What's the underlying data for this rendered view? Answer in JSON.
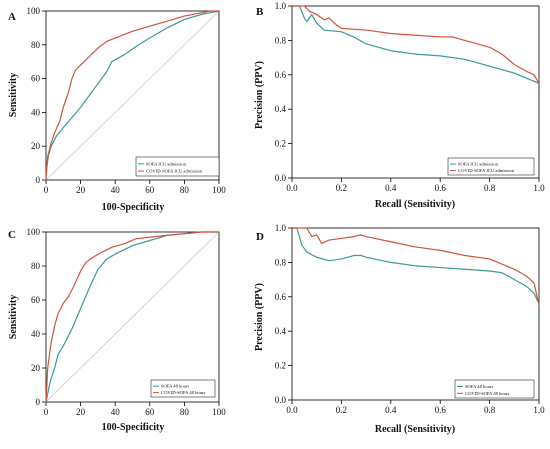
{
  "chart_data": [
    {
      "panel": "A",
      "type": "line",
      "xlabel": "100-Specificity",
      "ylabel": "Sensitivity",
      "xlim": [
        0,
        100
      ],
      "ylim": [
        0,
        100
      ],
      "xticks": [
        "0",
        "20",
        "40",
        "60",
        "80",
        "100"
      ],
      "yticks": [
        "0",
        "20",
        "40",
        "60",
        "80",
        "100"
      ],
      "diagonal": true,
      "legend_position": "bottom-right",
      "series": [
        {
          "name": "SOFA ICU admission",
          "color": "#3a9a9a",
          "x": [
            0,
            0.5,
            1.5,
            3,
            6,
            10,
            15,
            20,
            25,
            30,
            35,
            38,
            45,
            52,
            60,
            70,
            80,
            90,
            95,
            100
          ],
          "y": [
            0,
            8,
            15,
            20,
            26,
            31,
            37,
            43,
            50,
            57,
            64,
            70,
            74,
            79,
            84,
            90,
            95,
            98,
            99,
            100
          ]
        },
        {
          "name": "COVID-SOFA ICU admission",
          "color": "#d0533a",
          "x": [
            0,
            0.5,
            1,
            2,
            3,
            5,
            8,
            10,
            13,
            15,
            17,
            20,
            25,
            30,
            35,
            40,
            50,
            60,
            70,
            80,
            90,
            95,
            100
          ],
          "y": [
            0,
            8,
            14,
            18,
            22,
            28,
            35,
            43,
            52,
            60,
            65,
            68,
            73,
            78,
            82,
            84,
            88,
            91,
            94,
            97,
            99,
            100,
            100
          ]
        }
      ]
    },
    {
      "panel": "B",
      "type": "line",
      "xlabel": "Recall (Sensitivity)",
      "ylabel": "Precision (PPV)",
      "xlim": [
        0,
        1
      ],
      "ylim": [
        0,
        1
      ],
      "xticks": [
        "0.0",
        "0.2",
        "0.4",
        "0.6",
        "0.8",
        "1.0"
      ],
      "yticks": [
        "0.0",
        "0.2",
        "0.4",
        "0.6",
        "0.8",
        "1.0"
      ],
      "legend_position": "bottom-right",
      "series": [
        {
          "name": "SOFA ICU admission",
          "color": "#3a9a9a",
          "x": [
            0,
            0.03,
            0.05,
            0.06,
            0.08,
            0.1,
            0.13,
            0.2,
            0.25,
            0.3,
            0.4,
            0.5,
            0.6,
            0.7,
            0.8,
            0.9,
            0.95,
            1.0
          ],
          "y": [
            1.0,
            1.0,
            0.93,
            0.91,
            0.95,
            0.9,
            0.86,
            0.85,
            0.82,
            0.78,
            0.74,
            0.72,
            0.71,
            0.69,
            0.65,
            0.61,
            0.58,
            0.55
          ]
        },
        {
          "name": "COVID-SOFA ICU admission",
          "color": "#d0533a",
          "x": [
            0,
            0.05,
            0.07,
            0.1,
            0.13,
            0.15,
            0.18,
            0.2,
            0.3,
            0.4,
            0.5,
            0.6,
            0.65,
            0.7,
            0.8,
            0.85,
            0.9,
            0.95,
            0.98,
            1.0
          ],
          "y": [
            1.0,
            1.0,
            0.97,
            0.95,
            0.92,
            0.93,
            0.89,
            0.87,
            0.86,
            0.84,
            0.83,
            0.82,
            0.82,
            0.8,
            0.76,
            0.72,
            0.66,
            0.62,
            0.6,
            0.55
          ]
        }
      ]
    },
    {
      "panel": "C",
      "type": "line",
      "xlabel": "100-Specificity",
      "ylabel": "Sensitivity",
      "xlim": [
        0,
        100
      ],
      "ylim": [
        0,
        100
      ],
      "xticks": [
        "0",
        "20",
        "40",
        "60",
        "80",
        "100"
      ],
      "yticks": [
        "0",
        "20",
        "40",
        "60",
        "80",
        "100"
      ],
      "diagonal": true,
      "legend_position": "bottom-right",
      "series": [
        {
          "name": "SOFA 48 hours",
          "color": "#3a9a9a",
          "x": [
            0,
            1,
            2,
            3,
            5,
            7,
            10,
            15,
            20,
            25,
            30,
            35,
            40,
            50,
            60,
            70,
            80,
            90,
            100
          ],
          "y": [
            0,
            5,
            10,
            14,
            20,
            28,
            33,
            43,
            55,
            67,
            78,
            84,
            87,
            92,
            95,
            98,
            99,
            100,
            100
          ]
        },
        {
          "name": "COVID-SOFA 48 hours",
          "color": "#d0533a",
          "x": [
            0,
            0.5,
            1,
            2,
            3,
            5,
            7,
            10,
            13,
            16,
            20,
            23,
            27,
            32,
            38,
            45,
            52,
            60,
            70,
            80,
            90,
            100
          ],
          "y": [
            0,
            10,
            20,
            28,
            35,
            45,
            52,
            58,
            62,
            68,
            77,
            82,
            85,
            88,
            91,
            93,
            96,
            97,
            98,
            99,
            100,
            100
          ]
        }
      ]
    },
    {
      "panel": "D",
      "type": "line",
      "xlabel": "Recall (Sensitivity)",
      "ylabel": "Precision (PPV)",
      "xlim": [
        0,
        1
      ],
      "ylim": [
        0,
        1
      ],
      "xticks": [
        "0.0",
        "0.2",
        "0.4",
        "0.6",
        "0.8",
        "1.0"
      ],
      "yticks": [
        "0.0",
        "0.2",
        "0.4",
        "0.6",
        "0.8",
        "1.0"
      ],
      "legend_position": "bottom-right",
      "series": [
        {
          "name": "SOFA 48 hours",
          "color": "#3a9a9a",
          "x": [
            0,
            0.02,
            0.04,
            0.06,
            0.1,
            0.15,
            0.2,
            0.25,
            0.28,
            0.3,
            0.4,
            0.5,
            0.6,
            0.7,
            0.8,
            0.85,
            0.9,
            0.95,
            0.98,
            1.0
          ],
          "y": [
            1.0,
            1.0,
            0.9,
            0.86,
            0.83,
            0.81,
            0.82,
            0.84,
            0.84,
            0.83,
            0.8,
            0.78,
            0.77,
            0.76,
            0.75,
            0.74,
            0.7,
            0.66,
            0.62,
            0.56
          ]
        },
        {
          "name": "COVID-SOFA 48 hours",
          "color": "#d0533a",
          "x": [
            0,
            0.06,
            0.08,
            0.1,
            0.12,
            0.15,
            0.2,
            0.25,
            0.28,
            0.3,
            0.4,
            0.5,
            0.6,
            0.7,
            0.8,
            0.85,
            0.9,
            0.95,
            0.98,
            1.0
          ],
          "y": [
            1.0,
            1.0,
            0.95,
            0.96,
            0.91,
            0.93,
            0.94,
            0.95,
            0.96,
            0.95,
            0.92,
            0.89,
            0.87,
            0.84,
            0.82,
            0.79,
            0.76,
            0.72,
            0.68,
            0.55
          ]
        }
      ]
    }
  ]
}
